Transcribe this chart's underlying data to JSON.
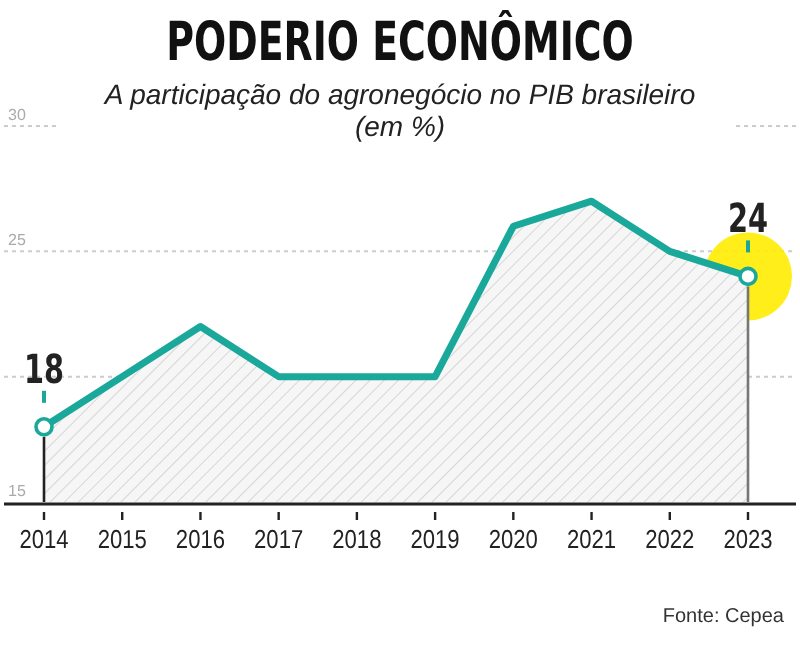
{
  "chart_data": {
    "type": "area",
    "title": "PODERIO ECONÔMICO",
    "subtitle": "A participação do agronegócio no PIB brasileiro (em %)",
    "categories": [
      "2014",
      "2015",
      "2016",
      "2017",
      "2018",
      "2019",
      "2020",
      "2021",
      "2022",
      "2023"
    ],
    "series": [
      {
        "color": "#1aa89a",
        "values": [
          18,
          20,
          22,
          20,
          20,
          20,
          26,
          27,
          25,
          24
        ],
        "value_labels": [
          "18",
          null,
          null,
          null,
          null,
          null,
          null,
          null,
          null,
          "24"
        ]
      }
    ],
    "ylim": [
      15,
      30
    ],
    "yticks": [
      15,
      {
        "value": 20,
        "label": null
      },
      25,
      30
    ],
    "grid": "y",
    "line_style": "solid",
    "annotations": [
      "Fonte: Cepea"
    ]
  }
}
